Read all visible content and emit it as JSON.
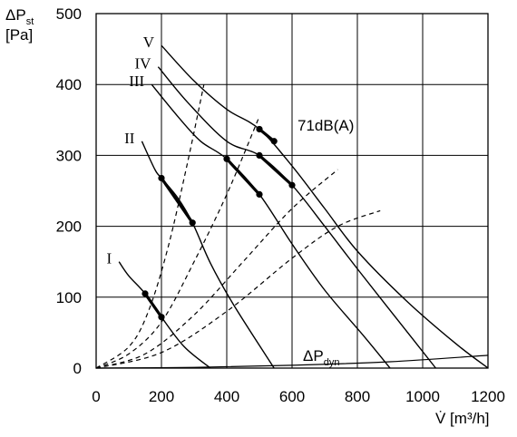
{
  "chart_data": {
    "type": "line",
    "title": "",
    "ylabel": {
      "main": "ΔP",
      "sub": "st",
      "unit": "[Pa]"
    },
    "xlabel": "V̇ [m³/h]",
    "xlim": [
      0,
      1200
    ],
    "ylim": [
      0,
      500
    ],
    "x_ticks": [
      0,
      200,
      400,
      600,
      800,
      1000,
      1200
    ],
    "y_ticks": [
      0,
      100,
      200,
      300,
      400,
      500
    ],
    "grid": true,
    "fan_curves": [
      {
        "name": "I",
        "points": [
          [
            70,
            150
          ],
          [
            100,
            130
          ],
          [
            150,
            105
          ],
          [
            200,
            72
          ],
          [
            270,
            30
          ],
          [
            350,
            0
          ]
        ]
      },
      {
        "name": "II",
        "points": [
          [
            140,
            320
          ],
          [
            180,
            280
          ],
          [
            200,
            268
          ],
          [
            250,
            240
          ],
          [
            295,
            205
          ],
          [
            350,
            148
          ],
          [
            420,
            90
          ],
          [
            545,
            0
          ]
        ]
      },
      {
        "name": "III",
        "points": [
          [
            170,
            400
          ],
          [
            250,
            355
          ],
          [
            320,
            320
          ],
          [
            400,
            295
          ],
          [
            500,
            245
          ],
          [
            600,
            175
          ],
          [
            700,
            110
          ],
          [
            820,
            45
          ],
          [
            900,
            0
          ]
        ]
      },
      {
        "name": "IV",
        "points": [
          [
            190,
            425
          ],
          [
            280,
            375
          ],
          [
            400,
            320
          ],
          [
            500,
            300
          ],
          [
            600,
            258
          ],
          [
            700,
            200
          ],
          [
            800,
            140
          ],
          [
            920,
            70
          ],
          [
            1040,
            0
          ]
        ]
      },
      {
        "name": "V",
        "points": [
          [
            200,
            455
          ],
          [
            300,
            405
          ],
          [
            400,
            365
          ],
          [
            500,
            337
          ],
          [
            600,
            285
          ],
          [
            700,
            225
          ],
          [
            800,
            165
          ],
          [
            950,
            95
          ],
          [
            1100,
            35
          ],
          [
            1200,
            0
          ]
        ]
      }
    ],
    "system_curves": [
      {
        "points": [
          [
            0,
            0
          ],
          [
            100,
            30
          ],
          [
            160,
            80
          ],
          [
            220,
            170
          ],
          [
            280,
            290
          ],
          [
            330,
            400
          ]
        ]
      },
      {
        "points": [
          [
            0,
            0
          ],
          [
            100,
            20
          ],
          [
            200,
            65
          ],
          [
            300,
            150
          ],
          [
            400,
            245
          ],
          [
            500,
            355
          ]
        ]
      },
      {
        "points": [
          [
            0,
            0
          ],
          [
            150,
            20
          ],
          [
            300,
            75
          ],
          [
            450,
            150
          ],
          [
            600,
            225
          ],
          [
            740,
            280
          ]
        ]
      },
      {
        "points": [
          [
            0,
            0
          ],
          [
            200,
            22
          ],
          [
            400,
            80
          ],
          [
            600,
            155
          ],
          [
            740,
            200
          ],
          [
            870,
            222
          ]
        ]
      }
    ],
    "dynamic_pressure_curve": {
      "label": {
        "main": "ΔP",
        "sub": "dyn"
      },
      "points": [
        [
          0,
          0
        ],
        [
          300,
          1
        ],
        [
          600,
          4
        ],
        [
          900,
          9
        ],
        [
          1200,
          18
        ]
      ]
    },
    "noise_segments": [
      {
        "curve": "I",
        "points": [
          [
            150,
            105
          ],
          [
            200,
            72
          ]
        ]
      },
      {
        "curve": "II",
        "points": [
          [
            200,
            268
          ],
          [
            295,
            205
          ]
        ]
      },
      {
        "curve": "III",
        "points": [
          [
            400,
            295
          ],
          [
            500,
            245
          ]
        ]
      },
      {
        "curve": "IV",
        "points": [
          [
            500,
            300
          ],
          [
            600,
            258
          ]
        ]
      },
      {
        "curve": "V",
        "points": [
          [
            500,
            337
          ],
          [
            545,
            320
          ]
        ]
      }
    ],
    "noise_label": "71dB(A)"
  }
}
